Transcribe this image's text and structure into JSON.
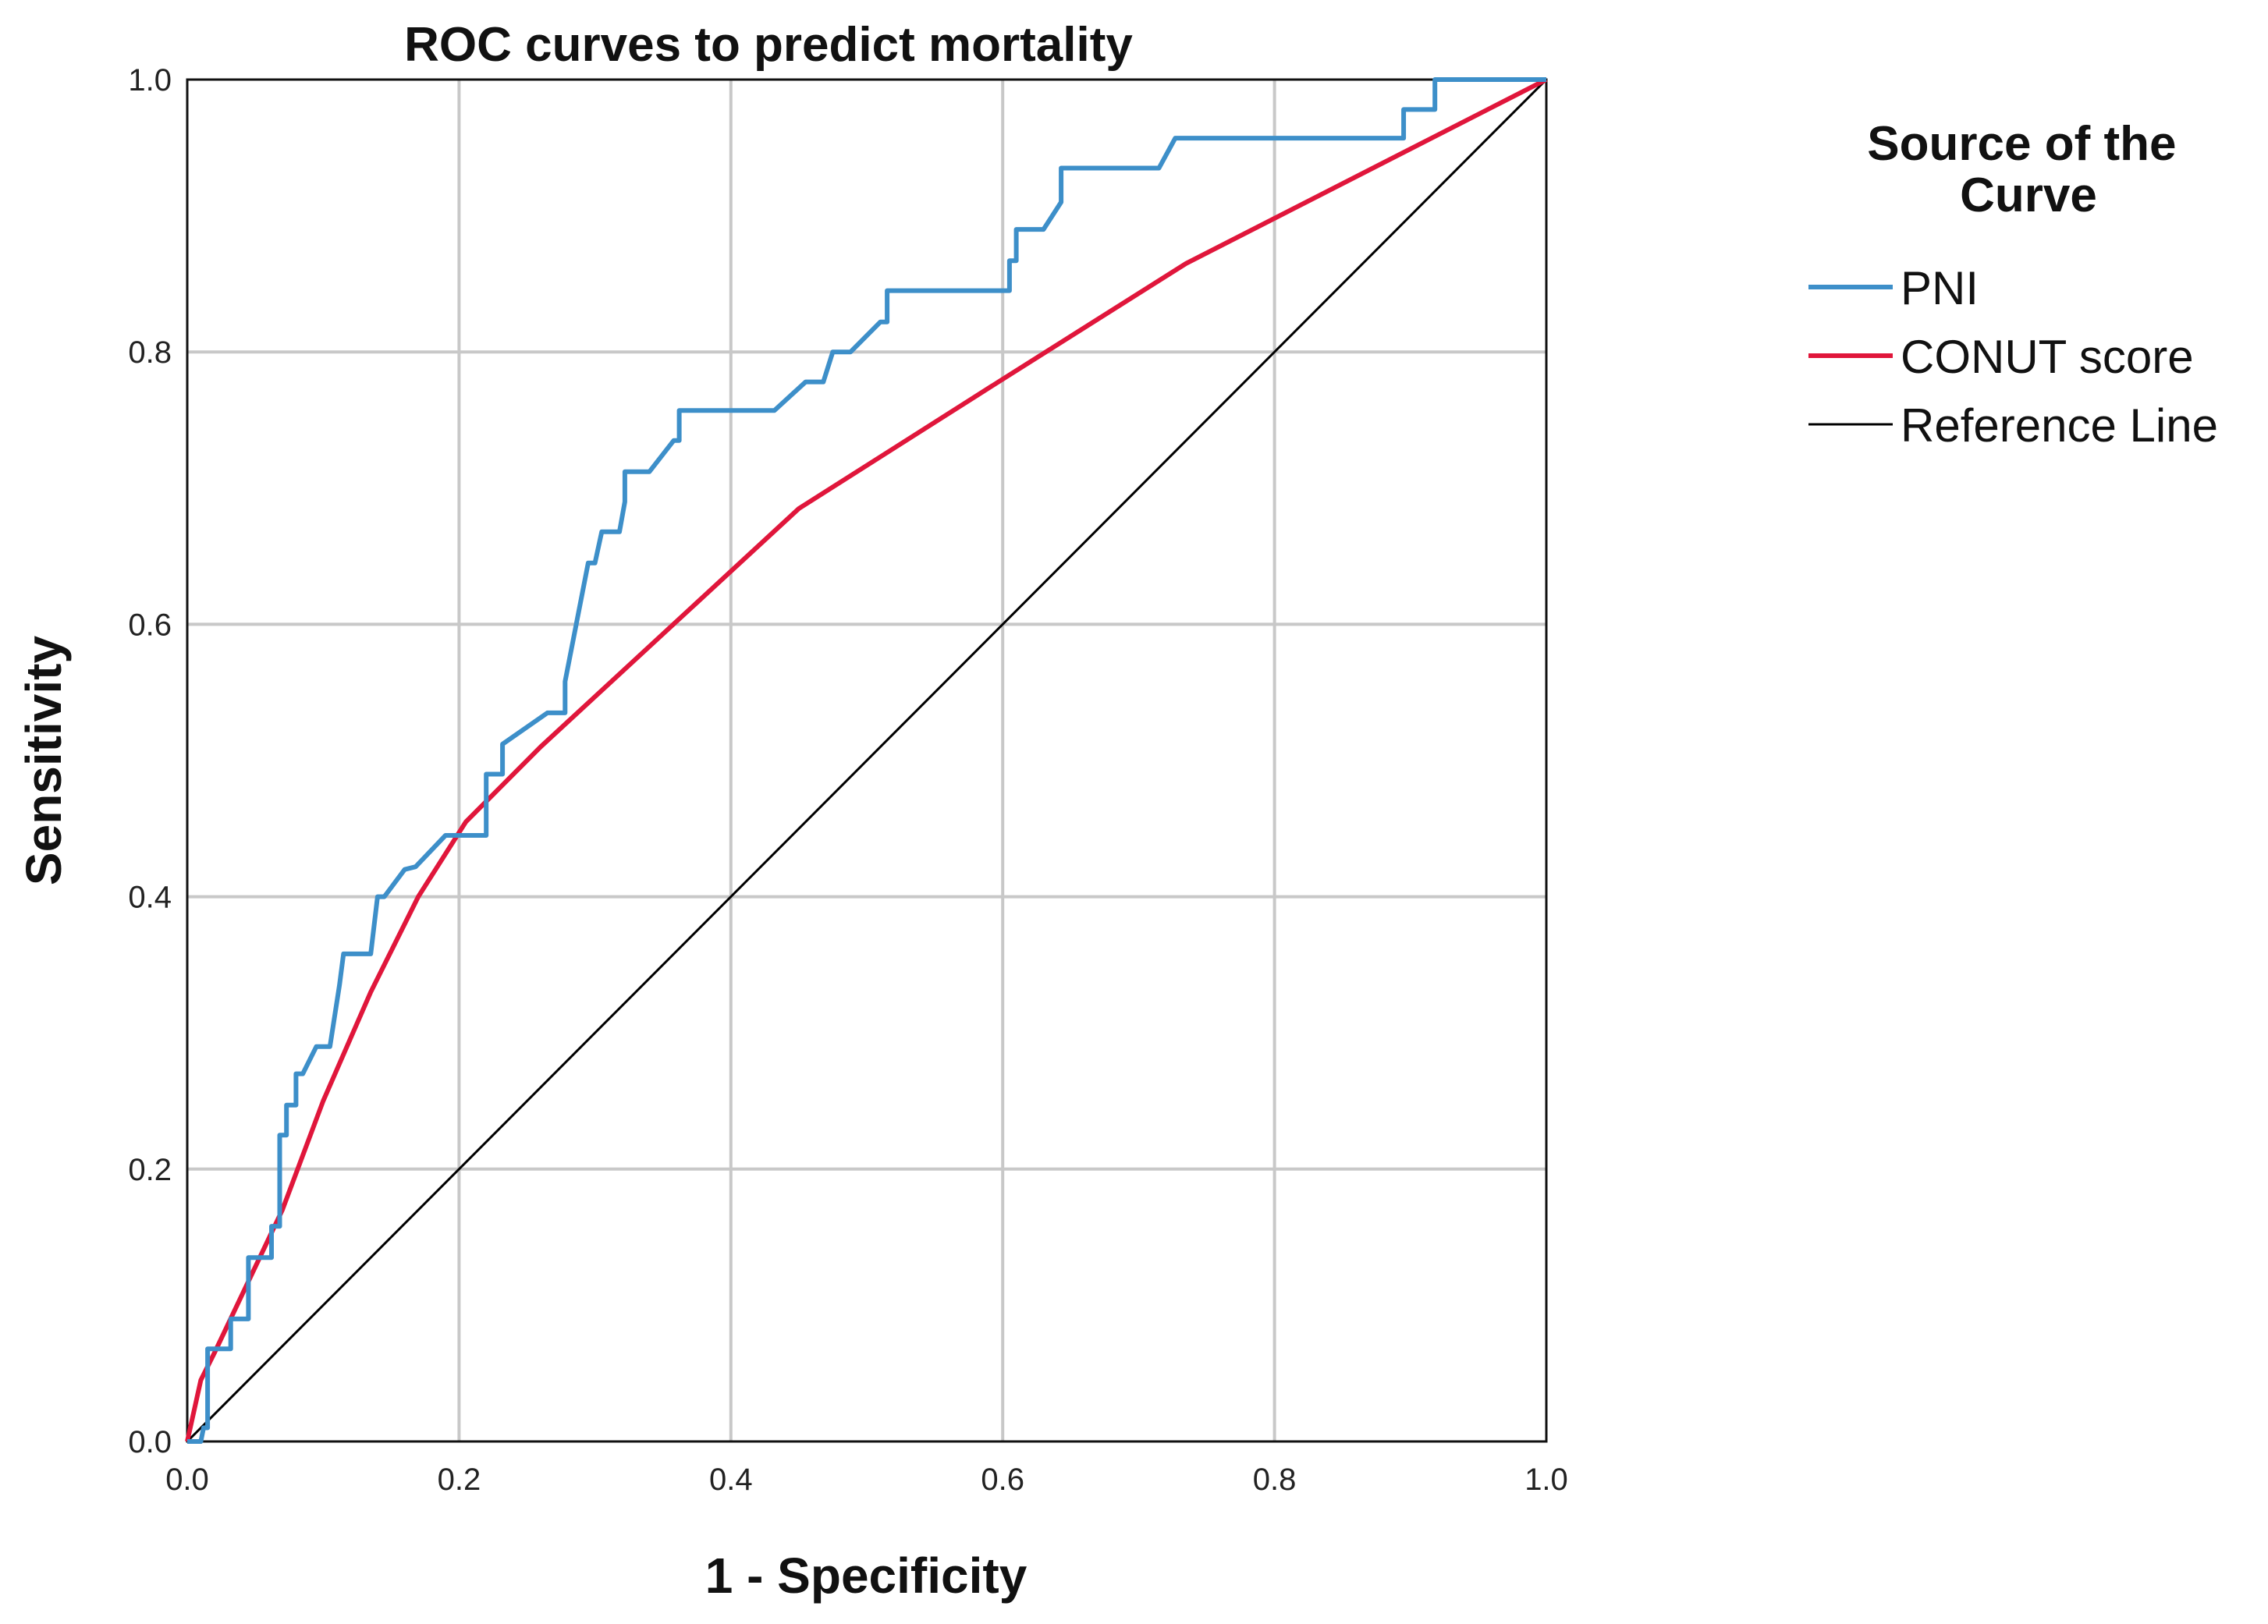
{
  "chart_data": {
    "type": "line",
    "title": "ROC curves to predict mortality",
    "xlabel": "1 - Specificity",
    "ylabel": "Sensitivity",
    "xlim": [
      0,
      1
    ],
    "ylim": [
      0,
      1
    ],
    "x_ticks": [
      "0.0",
      "0.2",
      "0.4",
      "0.6",
      "0.8",
      "1.0"
    ],
    "y_ticks": [
      "0.0",
      "0.2",
      "0.4",
      "0.6",
      "0.8",
      "1.0"
    ],
    "grid": true,
    "legend": {
      "title": "Source of the Curve",
      "title_lines": [
        "Source of the",
        "Curve"
      ],
      "placement": "right"
    },
    "series": [
      {
        "name": "PNI",
        "color": "#3d8fc9",
        "points": [
          [
            0,
            0
          ],
          [
            0.01,
            0
          ],
          [
            0.012,
            0.01
          ],
          [
            0.015,
            0.01
          ],
          [
            0.015,
            0.068
          ],
          [
            0.032,
            0.068
          ],
          [
            0.032,
            0.09
          ],
          [
            0.045,
            0.09
          ],
          [
            0.045,
            0.135
          ],
          [
            0.062,
            0.135
          ],
          [
            0.062,
            0.158
          ],
          [
            0.068,
            0.158
          ],
          [
            0.068,
            0.225
          ],
          [
            0.073,
            0.225
          ],
          [
            0.073,
            0.247
          ],
          [
            0.08,
            0.247
          ],
          [
            0.08,
            0.27
          ],
          [
            0.085,
            0.27
          ],
          [
            0.095,
            0.29
          ],
          [
            0.105,
            0.29
          ],
          [
            0.112,
            0.335
          ],
          [
            0.115,
            0.358
          ],
          [
            0.135,
            0.358
          ],
          [
            0.14,
            0.4
          ],
          [
            0.145,
            0.4
          ],
          [
            0.16,
            0.42
          ],
          [
            0.168,
            0.422
          ],
          [
            0.19,
            0.445
          ],
          [
            0.22,
            0.445
          ],
          [
            0.22,
            0.49
          ],
          [
            0.232,
            0.49
          ],
          [
            0.232,
            0.512
          ],
          [
            0.265,
            0.535
          ],
          [
            0.278,
            0.535
          ],
          [
            0.278,
            0.558
          ],
          [
            0.295,
            0.645
          ],
          [
            0.3,
            0.645
          ],
          [
            0.305,
            0.668
          ],
          [
            0.318,
            0.668
          ],
          [
            0.322,
            0.69
          ],
          [
            0.322,
            0.712
          ],
          [
            0.34,
            0.712
          ],
          [
            0.358,
            0.735
          ],
          [
            0.362,
            0.735
          ],
          [
            0.362,
            0.757
          ],
          [
            0.432,
            0.757
          ],
          [
            0.455,
            0.778
          ],
          [
            0.468,
            0.778
          ],
          [
            0.475,
            0.8
          ],
          [
            0.488,
            0.8
          ],
          [
            0.51,
            0.822
          ],
          [
            0.515,
            0.822
          ],
          [
            0.515,
            0.845
          ],
          [
            0.605,
            0.845
          ],
          [
            0.605,
            0.867
          ],
          [
            0.61,
            0.867
          ],
          [
            0.61,
            0.89
          ],
          [
            0.63,
            0.89
          ],
          [
            0.643,
            0.91
          ],
          [
            0.643,
            0.935
          ],
          [
            0.715,
            0.935
          ],
          [
            0.727,
            0.957
          ],
          [
            0.895,
            0.957
          ],
          [
            0.895,
            0.978
          ],
          [
            0.918,
            0.978
          ],
          [
            0.918,
            1.0
          ],
          [
            1.0,
            1.0
          ]
        ]
      },
      {
        "name": "CONUT score",
        "color": "#e0163b",
        "points": [
          [
            0,
            0
          ],
          [
            0.01,
            0.045
          ],
          [
            0.02,
            0.065
          ],
          [
            0.07,
            0.17
          ],
          [
            0.1,
            0.25
          ],
          [
            0.135,
            0.33
          ],
          [
            0.17,
            0.4
          ],
          [
            0.205,
            0.455
          ],
          [
            0.26,
            0.51
          ],
          [
            0.45,
            0.685
          ],
          [
            0.6,
            0.78
          ],
          [
            0.735,
            0.865
          ],
          [
            1.0,
            1.0
          ]
        ]
      },
      {
        "name": "Reference Line",
        "color": "#000000",
        "points": [
          [
            0,
            0
          ],
          [
            1,
            1
          ]
        ]
      }
    ]
  }
}
